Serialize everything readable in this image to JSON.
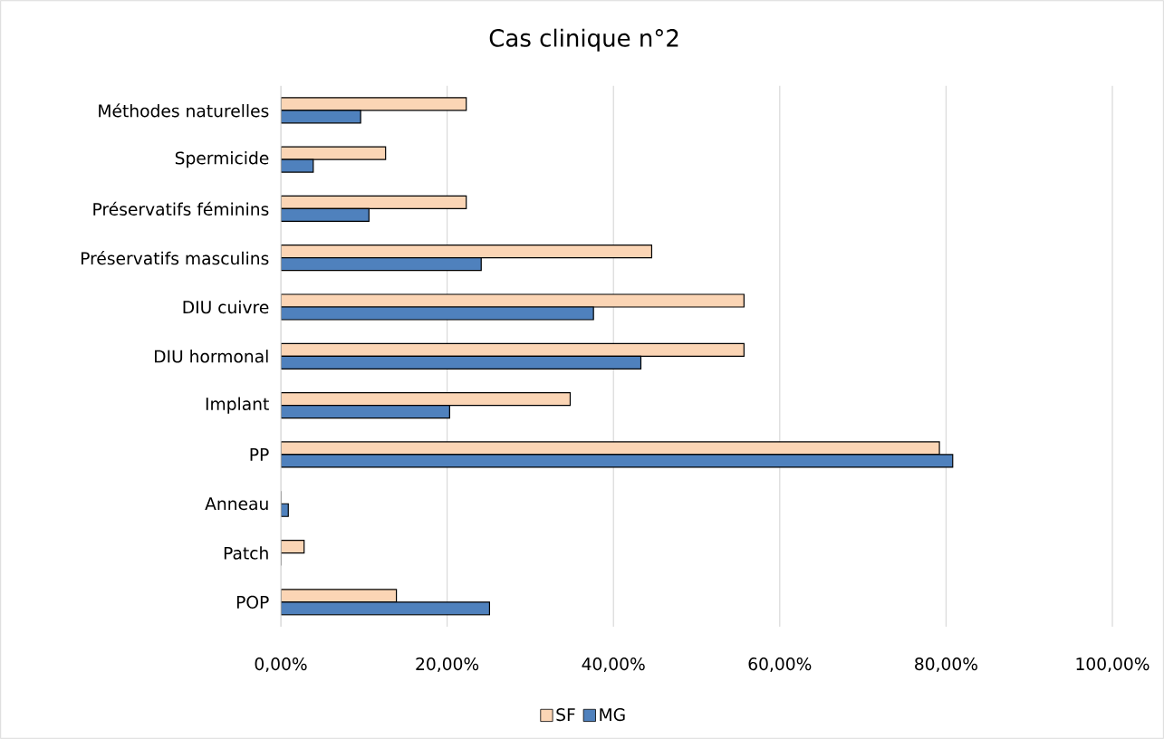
{
  "chart_data": {
    "type": "bar",
    "orientation": "horizontal",
    "title": "Cas clinique n°2",
    "categories": [
      "Méthodes naturelles",
      "Spermicide",
      "Préservatifs féminins",
      "Préservatifs masculins",
      "DIU cuivre",
      "DIU hormonal",
      "Implant",
      "PP",
      "Anneau",
      "Patch",
      "POP"
    ],
    "series": [
      {
        "name": "SF",
        "color": "#fbd5b5",
        "values": [
          22.3,
          12.6,
          22.3,
          44.6,
          55.7,
          55.7,
          34.8,
          79.2,
          0,
          2.8,
          13.9
        ]
      },
      {
        "name": "MG",
        "color": "#4f81bd",
        "values": [
          9.6,
          3.9,
          10.6,
          24.1,
          37.6,
          43.3,
          20.3,
          80.8,
          0.9,
          0,
          25.1
        ]
      }
    ],
    "xlim": [
      0,
      100
    ],
    "xticks": [
      {
        "value": 0,
        "label": "0,00%"
      },
      {
        "value": 20,
        "label": "20,00%"
      },
      {
        "value": 40,
        "label": "40,00%"
      },
      {
        "value": 60,
        "label": "60,00%"
      },
      {
        "value": 80,
        "label": "80,00%"
      },
      {
        "value": 100,
        "label": "100,00%"
      }
    ],
    "grid": "x",
    "legend": "bottom"
  }
}
